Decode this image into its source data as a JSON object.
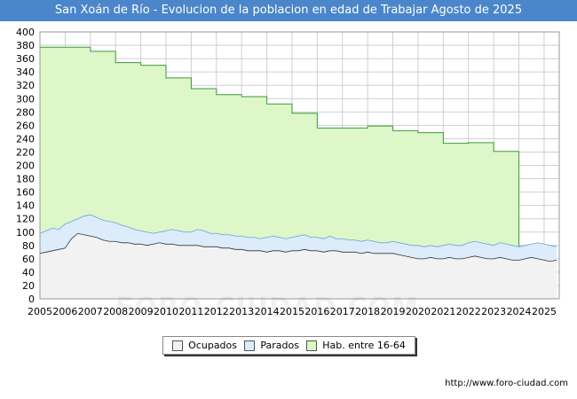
{
  "title": "San Xoán de Río - Evolucion de la poblacion en edad de Trabajar Agosto de 2025",
  "source": "http://www.foro-ciudad.com",
  "watermark": "FORO-CIUDAD.COM",
  "colors": {
    "title_bg": "#4a86c9",
    "hab_fill": "#ddf7c8",
    "hab_line": "#3c9a3c",
    "parados_fill": "#dcecfb",
    "parados_line": "#6aa0d8",
    "ocupados_fill": "#f2f2f2",
    "ocupados_line": "#333333",
    "grid": "#cfcfcf"
  },
  "legend": [
    {
      "key": "ocupados",
      "label": "Ocupados",
      "color": "#f2f2f2"
    },
    {
      "key": "parados",
      "label": "Parados",
      "color": "#dcecfb"
    },
    {
      "key": "hab",
      "label": "Hab. entre 16-64",
      "color": "#ddf7c8"
    }
  ],
  "chart_data": {
    "type": "area",
    "title": "San Xoán de Río - Evolucion de la poblacion en edad de Trabajar Agosto de 2025",
    "xlim": [
      2005,
      2025.6
    ],
    "ylim": [
      0,
      400
    ],
    "xticks": [
      2005,
      2006,
      2007,
      2008,
      2009,
      2010,
      2011,
      2012,
      2013,
      2014,
      2015,
      2016,
      2017,
      2018,
      2019,
      2020,
      2021,
      2022,
      2023,
      2024,
      2025
    ],
    "yticks": [
      0,
      20,
      40,
      60,
      80,
      100,
      120,
      140,
      160,
      180,
      200,
      220,
      240,
      260,
      280,
      300,
      320,
      340,
      360,
      380,
      400
    ],
    "grid": true,
    "legend_position": "bottom-center",
    "series": [
      {
        "name": "Hab. entre 16-64",
        "type": "step",
        "points": [
          [
            2005,
            377
          ],
          [
            2006,
            377
          ],
          [
            2007,
            371
          ],
          [
            2008,
            354
          ],
          [
            2009,
            350
          ],
          [
            2010,
            331
          ],
          [
            2011,
            315
          ],
          [
            2012,
            306
          ],
          [
            2013,
            303
          ],
          [
            2014,
            292
          ],
          [
            2015,
            278
          ],
          [
            2016,
            256
          ],
          [
            2017,
            256
          ],
          [
            2018,
            259
          ],
          [
            2019,
            252
          ],
          [
            2020,
            249
          ],
          [
            2021,
            233
          ],
          [
            2022,
            234
          ],
          [
            2023,
            221
          ],
          [
            2024,
            null
          ]
        ]
      },
      {
        "name": "Parados",
        "x": [
          2005.0,
          2005.25,
          2005.5,
          2005.75,
          2006.0,
          2006.25,
          2006.5,
          2006.75,
          2007.0,
          2007.25,
          2007.5,
          2007.75,
          2008.0,
          2008.25,
          2008.5,
          2008.75,
          2009.0,
          2009.25,
          2009.5,
          2009.75,
          2010.0,
          2010.25,
          2010.5,
          2010.75,
          2011.0,
          2011.25,
          2011.5,
          2011.75,
          2012.0,
          2012.25,
          2012.5,
          2012.75,
          2013.0,
          2013.25,
          2013.5,
          2013.75,
          2014.0,
          2014.25,
          2014.5,
          2014.75,
          2015.0,
          2015.25,
          2015.5,
          2015.75,
          2016.0,
          2016.25,
          2016.5,
          2016.75,
          2017.0,
          2017.25,
          2017.5,
          2017.75,
          2018.0,
          2018.25,
          2018.5,
          2018.75,
          2019.0,
          2019.25,
          2019.5,
          2019.75,
          2020.0,
          2020.25,
          2020.5,
          2020.75,
          2021.0,
          2021.25,
          2021.5,
          2021.75,
          2022.0,
          2022.25,
          2022.5,
          2022.75,
          2023.0,
          2023.25,
          2023.5,
          2023.75,
          2024.0,
          2024.25,
          2024.5,
          2024.75,
          2025.0,
          2025.25,
          2025.5
        ],
        "values": [
          98,
          102,
          106,
          104,
          112,
          116,
          120,
          124,
          126,
          122,
          118,
          116,
          114,
          110,
          108,
          104,
          102,
          100,
          98,
          100,
          102,
          104,
          102,
          100,
          100,
          104,
          102,
          98,
          98,
          96,
          96,
          94,
          94,
          92,
          92,
          90,
          92,
          94,
          92,
          90,
          92,
          94,
          96,
          92,
          92,
          90,
          94,
          90,
          90,
          88,
          88,
          86,
          88,
          86,
          84,
          84,
          86,
          84,
          82,
          80,
          80,
          78,
          80,
          78,
          80,
          82,
          80,
          80,
          84,
          86,
          84,
          82,
          80,
          84,
          82,
          80,
          78,
          80,
          82,
          84,
          82,
          80,
          78
        ]
      },
      {
        "name": "Ocupados",
        "x": [
          2005.0,
          2005.25,
          2005.5,
          2005.75,
          2006.0,
          2006.25,
          2006.5,
          2006.75,
          2007.0,
          2007.25,
          2007.5,
          2007.75,
          2008.0,
          2008.25,
          2008.5,
          2008.75,
          2009.0,
          2009.25,
          2009.5,
          2009.75,
          2010.0,
          2010.25,
          2010.5,
          2010.75,
          2011.0,
          2011.25,
          2011.5,
          2011.75,
          2012.0,
          2012.25,
          2012.5,
          2012.75,
          2013.0,
          2013.25,
          2013.5,
          2013.75,
          2014.0,
          2014.25,
          2014.5,
          2014.75,
          2015.0,
          2015.25,
          2015.5,
          2015.75,
          2016.0,
          2016.25,
          2016.5,
          2016.75,
          2017.0,
          2017.25,
          2017.5,
          2017.75,
          2018.0,
          2018.25,
          2018.5,
          2018.75,
          2019.0,
          2019.25,
          2019.5,
          2019.75,
          2020.0,
          2020.25,
          2020.5,
          2020.75,
          2021.0,
          2021.25,
          2021.5,
          2021.75,
          2022.0,
          2022.25,
          2022.5,
          2022.75,
          2023.0,
          2023.25,
          2023.5,
          2023.75,
          2024.0,
          2024.25,
          2024.5,
          2024.75,
          2025.0,
          2025.25,
          2025.5
        ],
        "values": [
          68,
          70,
          72,
          74,
          76,
          90,
          98,
          96,
          94,
          92,
          88,
          86,
          86,
          84,
          84,
          82,
          82,
          80,
          82,
          84,
          82,
          82,
          80,
          80,
          80,
          80,
          78,
          78,
          78,
          76,
          76,
          74,
          74,
          72,
          72,
          72,
          70,
          72,
          72,
          70,
          72,
          72,
          74,
          72,
          72,
          70,
          72,
          72,
          70,
          70,
          70,
          68,
          70,
          68,
          68,
          68,
          68,
          66,
          64,
          62,
          60,
          60,
          62,
          60,
          60,
          62,
          60,
          60,
          62,
          64,
          62,
          60,
          60,
          62,
          60,
          58,
          58,
          60,
          62,
          60,
          58,
          56,
          58
        ]
      }
    ]
  }
}
